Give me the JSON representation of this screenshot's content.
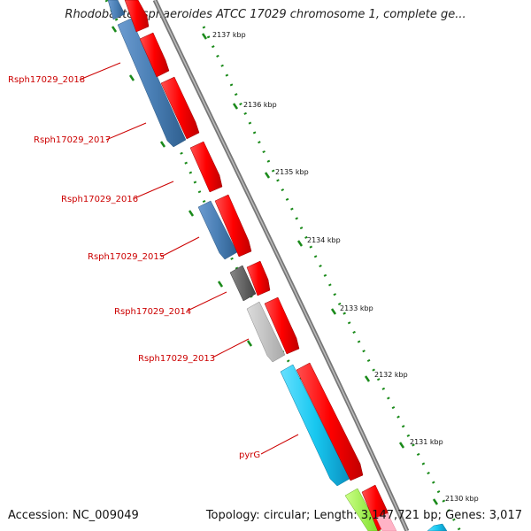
{
  "title": "Rhodobacter sphaeroides ATCC 17029 chromosome 1, complete ge...",
  "footer": {
    "accession_label": "Accession:",
    "accession": "NC_009049",
    "topology_label": "Topology:",
    "topology": "circular",
    "length_label": "Length:",
    "length": "3,147,721 bp",
    "genes_label": "Genes:",
    "genes": "3,017"
  },
  "kbp_ticks": [
    "2137 kbp",
    "2136 kbp",
    "2135 kbp",
    "2134 kbp",
    "2133 kbp",
    "2132 kbp",
    "2131 kbp",
    "2130 kbp"
  ],
  "gene_labels": [
    "Rsph17029_2018",
    "Rsph17029_2017",
    "Rsph17029_2016",
    "Rsph17029_2015",
    "Rsph17029_2014",
    "Rsph17029_2013",
    "pyrG"
  ],
  "colors": {
    "forward_gene": "#ff0000",
    "reverse_gene": "#4a7fb5",
    "pyrG_gene": "#18c8f0",
    "dark_gray_gene": "#666666",
    "light_gray_gene": "#c0c0c0",
    "lime_gene": "#99ff33",
    "backbone": "#888888",
    "tick_dots": "#1a8a1a",
    "label_red": "#cc0000"
  }
}
